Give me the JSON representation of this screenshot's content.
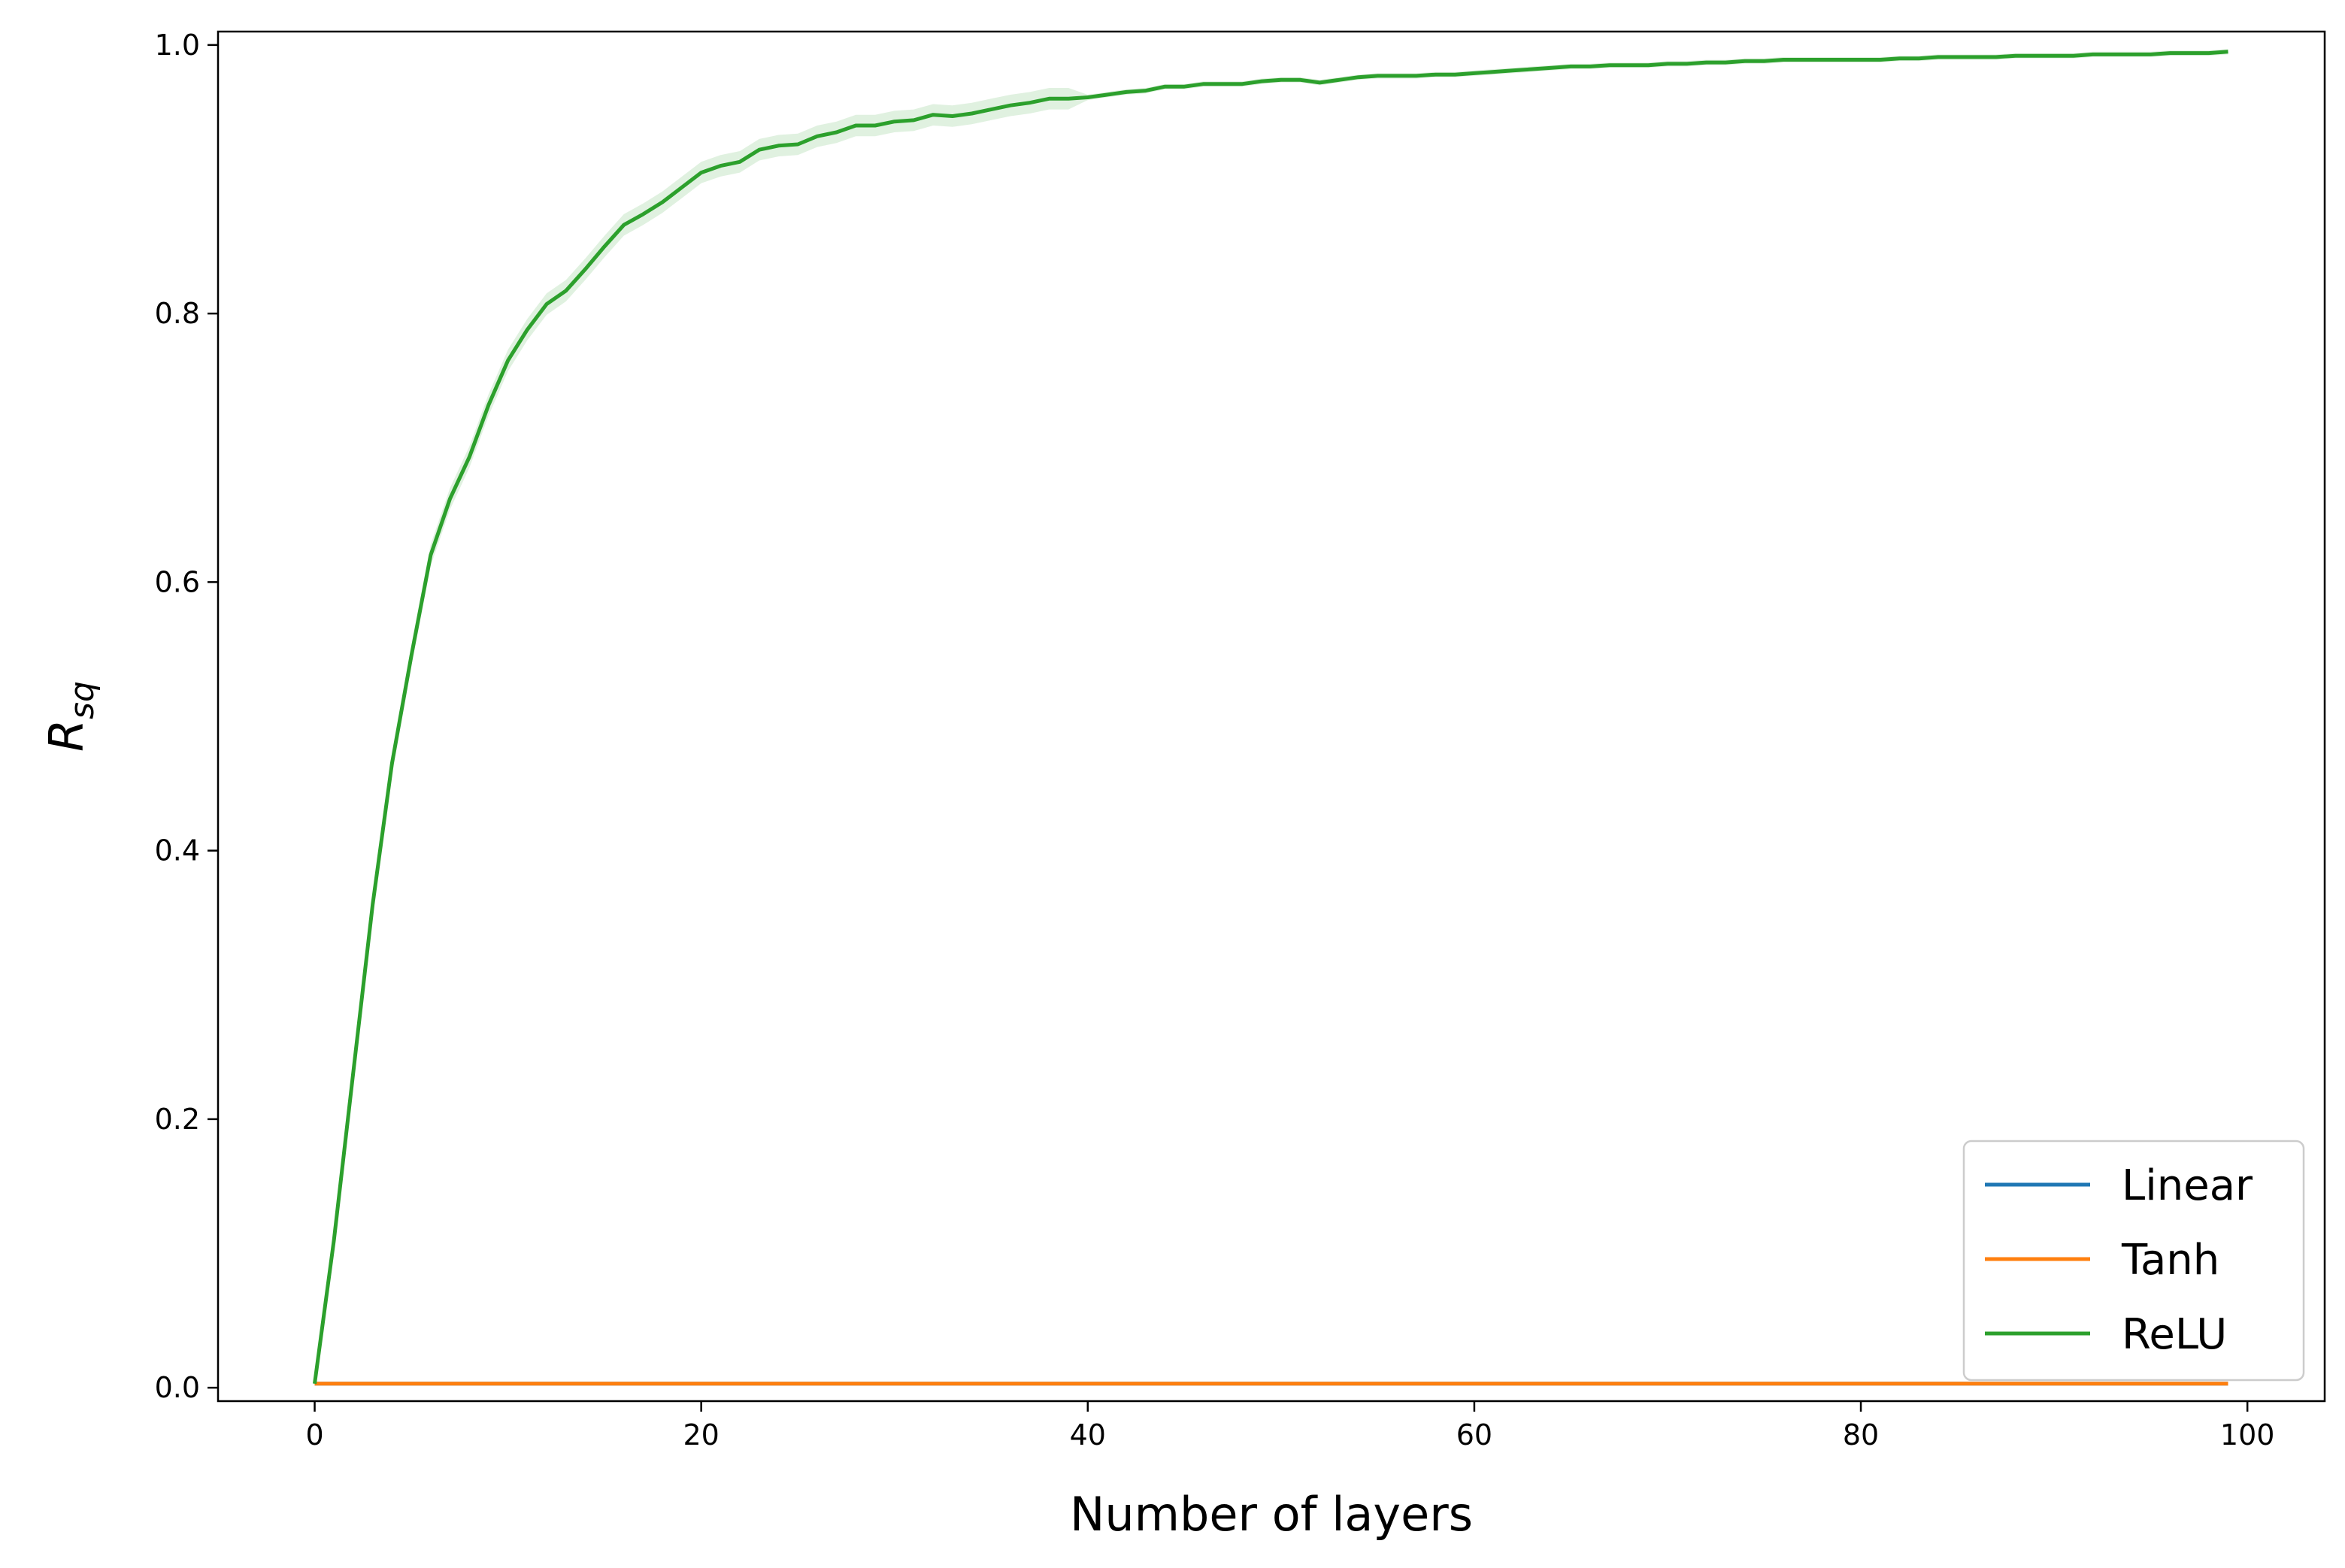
{
  "chart_data": {
    "type": "line",
    "title": "",
    "xlabel": "Number of layers",
    "ylabel": {
      "base": "R",
      "sub": "sq"
    },
    "xlim": [
      -5,
      104
    ],
    "ylim": [
      -0.01,
      1.01
    ],
    "xticks": [
      0,
      20,
      40,
      60,
      80,
      100
    ],
    "yticks": [
      0.0,
      0.2,
      0.4,
      0.6,
      0.8,
      1.0
    ],
    "xtick_labels": [
      "0",
      "20",
      "40",
      "60",
      "80",
      "100"
    ],
    "ytick_labels": [
      "0.0",
      "0.2",
      "0.4",
      "0.6",
      "0.8",
      "1.0"
    ],
    "grid": false,
    "legend_position": "bottom-right",
    "x": [
      0,
      1,
      2,
      3,
      4,
      5,
      6,
      7,
      8,
      9,
      10,
      11,
      12,
      13,
      14,
      15,
      16,
      17,
      18,
      19,
      20,
      21,
      22,
      23,
      24,
      25,
      26,
      27,
      28,
      29,
      30,
      31,
      32,
      33,
      34,
      35,
      36,
      37,
      38,
      39,
      40,
      41,
      42,
      43,
      44,
      45,
      46,
      47,
      48,
      49,
      50,
      51,
      52,
      53,
      54,
      55,
      56,
      57,
      58,
      59,
      60,
      61,
      62,
      63,
      64,
      65,
      66,
      67,
      68,
      69,
      70,
      71,
      72,
      73,
      74,
      75,
      76,
      77,
      78,
      79,
      80,
      81,
      82,
      83,
      84,
      85,
      86,
      87,
      88,
      89,
      90,
      91,
      92,
      93,
      94,
      95,
      96,
      97,
      98,
      99
    ],
    "series": [
      {
        "name": "Linear",
        "color": "#1f77b4",
        "values": [
          0.003,
          0.003,
          0.003,
          0.003,
          0.003,
          0.003,
          0.003,
          0.003,
          0.003,
          0.003,
          0.003,
          0.003,
          0.003,
          0.003,
          0.003,
          0.003,
          0.003,
          0.003,
          0.003,
          0.003,
          0.003,
          0.003,
          0.003,
          0.003,
          0.003,
          0.003,
          0.003,
          0.003,
          0.003,
          0.003,
          0.003,
          0.003,
          0.003,
          0.003,
          0.003,
          0.003,
          0.003,
          0.003,
          0.003,
          0.003,
          0.003,
          0.003,
          0.003,
          0.003,
          0.003,
          0.003,
          0.003,
          0.003,
          0.003,
          0.003,
          0.003,
          0.003,
          0.003,
          0.003,
          0.003,
          0.003,
          0.003,
          0.003,
          0.003,
          0.003,
          0.003,
          0.003,
          0.003,
          0.003,
          0.003,
          0.003,
          0.003,
          0.003,
          0.003,
          0.003,
          0.003,
          0.003,
          0.003,
          0.003,
          0.003,
          0.003,
          0.003,
          0.003,
          0.003,
          0.003,
          0.003,
          0.003,
          0.003,
          0.003,
          0.003,
          0.003,
          0.003,
          0.003,
          0.003,
          0.003,
          0.003,
          0.003,
          0.003,
          0.003,
          0.003,
          0.003,
          0.003,
          0.003,
          0.003,
          0.003
        ]
      },
      {
        "name": "Tanh",
        "color": "#ff7f0e",
        "values": [
          0.003,
          0.003,
          0.003,
          0.003,
          0.003,
          0.003,
          0.003,
          0.003,
          0.003,
          0.003,
          0.003,
          0.003,
          0.003,
          0.003,
          0.003,
          0.003,
          0.003,
          0.003,
          0.003,
          0.003,
          0.003,
          0.003,
          0.003,
          0.003,
          0.003,
          0.003,
          0.003,
          0.003,
          0.003,
          0.003,
          0.003,
          0.003,
          0.003,
          0.003,
          0.003,
          0.003,
          0.003,
          0.003,
          0.003,
          0.003,
          0.003,
          0.003,
          0.003,
          0.003,
          0.003,
          0.003,
          0.003,
          0.003,
          0.003,
          0.003,
          0.003,
          0.003,
          0.003,
          0.003,
          0.003,
          0.003,
          0.003,
          0.003,
          0.003,
          0.003,
          0.003,
          0.003,
          0.003,
          0.003,
          0.003,
          0.003,
          0.003,
          0.003,
          0.003,
          0.003,
          0.003,
          0.003,
          0.003,
          0.003,
          0.003,
          0.003,
          0.003,
          0.003,
          0.003,
          0.003,
          0.003,
          0.003,
          0.003,
          0.003,
          0.003,
          0.003,
          0.003,
          0.003,
          0.003,
          0.003,
          0.003,
          0.003,
          0.003,
          0.003,
          0.003,
          0.003,
          0.003,
          0.003,
          0.003,
          0.003
        ]
      },
      {
        "name": "ReLU",
        "color": "#2ca02c",
        "values": [
          0.003,
          0.11,
          0.235,
          0.36,
          0.465,
          0.545,
          0.62,
          0.662,
          0.693,
          0.732,
          0.765,
          0.788,
          0.807,
          0.817,
          0.833,
          0.85,
          0.866,
          0.874,
          0.883,
          0.894,
          0.905,
          0.91,
          0.913,
          0.922,
          0.925,
          0.926,
          0.932,
          0.935,
          0.94,
          0.94,
          0.943,
          0.944,
          0.948,
          0.947,
          0.949,
          0.952,
          0.955,
          0.957,
          0.96,
          0.96,
          0.961,
          0.963,
          0.965,
          0.966,
          0.969,
          0.969,
          0.971,
          0.971,
          0.971,
          0.973,
          0.974,
          0.974,
          0.972,
          0.974,
          0.976,
          0.977,
          0.977,
          0.977,
          0.978,
          0.978,
          0.979,
          0.98,
          0.981,
          0.982,
          0.983,
          0.984,
          0.984,
          0.985,
          0.985,
          0.985,
          0.986,
          0.986,
          0.987,
          0.987,
          0.988,
          0.988,
          0.989,
          0.989,
          0.989,
          0.989,
          0.989,
          0.989,
          0.99,
          0.99,
          0.991,
          0.991,
          0.991,
          0.991,
          0.992,
          0.992,
          0.992,
          0.992,
          0.993,
          0.993,
          0.993,
          0.993,
          0.994,
          0.994,
          0.994,
          0.995
        ]
      }
    ]
  }
}
